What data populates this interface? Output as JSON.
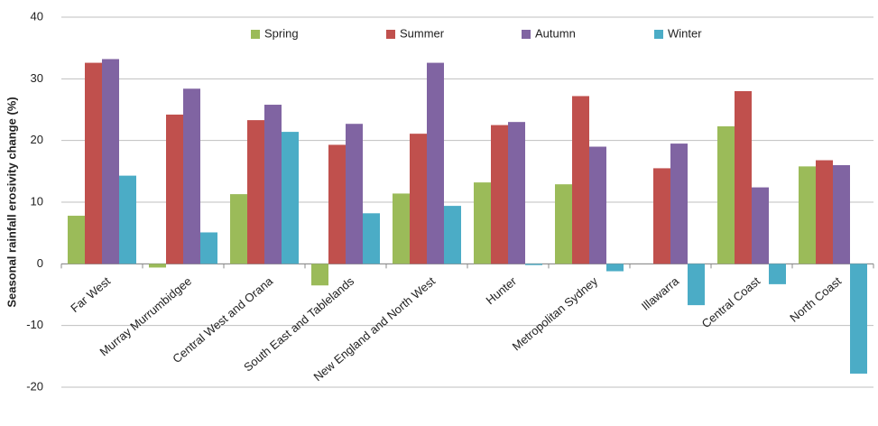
{
  "chart_data": {
    "type": "bar",
    "y_label": "Seasonal rainfall erosivity change (%)",
    "categories": [
      "Far West",
      "Murray Murrumbidgee",
      "Central West and Orana",
      "South East and Tablelands",
      "New England and North West",
      "Hunter",
      "Metropolitan Sydney",
      "Illawarra",
      "Central Coast",
      "North Coast"
    ],
    "series": [
      {
        "name": "Spring",
        "color": "#9bbb59",
        "values": [
          7.8,
          -0.6,
          11.3,
          -3.5,
          11.4,
          13.2,
          12.9,
          0,
          22.3,
          15.8
        ]
      },
      {
        "name": "Summer",
        "color": "#c0504d",
        "values": [
          32.6,
          24.2,
          23.3,
          19.3,
          21.1,
          22.5,
          27.2,
          15.5,
          28,
          16.8
        ]
      },
      {
        "name": "Autumn",
        "color": "#8064a2",
        "values": [
          33.2,
          28.4,
          25.8,
          22.7,
          32.6,
          23,
          19,
          19.5,
          12.4,
          16
        ]
      },
      {
        "name": "Winter",
        "color": "#4bacc6",
        "values": [
          14.3,
          5.1,
          21.4,
          8.2,
          9.4,
          -0.2,
          -1.2,
          -6.7,
          -3.3,
          -17.8
        ]
      }
    ],
    "ylim": [
      -20,
      40
    ],
    "yticks": [
      -20,
      -10,
      0,
      10,
      20,
      30,
      40
    ],
    "grid": true
  }
}
